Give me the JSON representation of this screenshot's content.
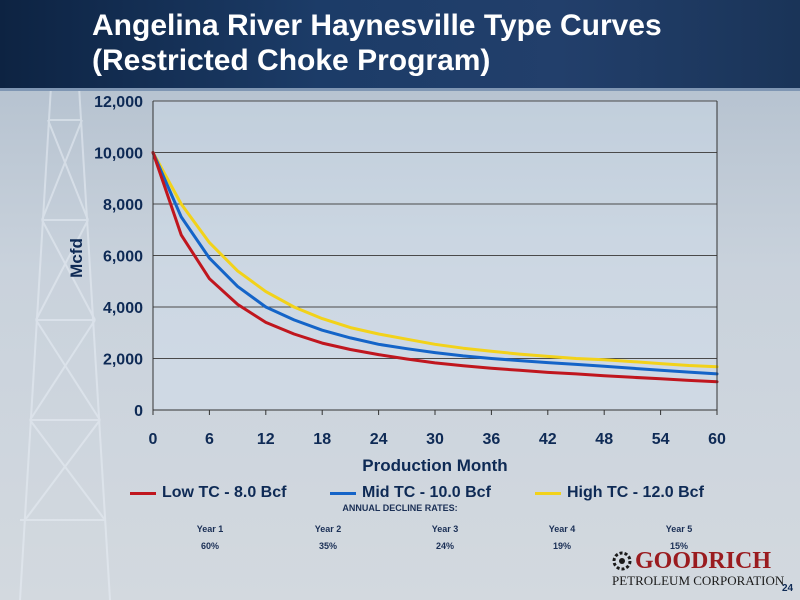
{
  "slide": {
    "title_line1": "Angelina River Haynesville Type Curves",
    "title_line2": "(Restricted Choke Program)",
    "page_number": "24"
  },
  "colors": {
    "low": "#c0161e",
    "mid": "#1464c8",
    "high": "#f2d21a",
    "axis_text": "#0e2a55"
  },
  "chart_data": {
    "type": "line",
    "xlabel": "Production Month",
    "ylabel": "Mcfd",
    "xlim": [
      0,
      60
    ],
    "ylim": [
      0,
      12000
    ],
    "xticks": [
      "0",
      "6",
      "12",
      "18",
      "24",
      "30",
      "36",
      "42",
      "48",
      "54",
      "60"
    ],
    "yticks": [
      "0",
      "2,000",
      "4,000",
      "6,000",
      "8,000",
      "10,000",
      "12,000"
    ],
    "grid": "horizontal",
    "legend_position": "bottom",
    "x": [
      0,
      3,
      6,
      9,
      12,
      15,
      18,
      21,
      24,
      27,
      30,
      33,
      36,
      39,
      42,
      45,
      48,
      51,
      54,
      57,
      60
    ],
    "series": [
      {
        "name": "Low TC - 8.0 Bcf",
        "color_key": "low",
        "values": [
          10000,
          6800,
          5100,
          4100,
          3400,
          2950,
          2600,
          2350,
          2150,
          1980,
          1830,
          1720,
          1620,
          1540,
          1460,
          1400,
          1330,
          1270,
          1210,
          1150,
          1100
        ]
      },
      {
        "name": "Mid TC - 10.0 Bcf",
        "color_key": "mid",
        "values": [
          10000,
          7500,
          5900,
          4800,
          4000,
          3500,
          3100,
          2800,
          2550,
          2380,
          2230,
          2100,
          2000,
          1920,
          1840,
          1770,
          1700,
          1620,
          1540,
          1470,
          1400
        ]
      },
      {
        "name": "High TC - 12.0 Bcf",
        "color_key": "high",
        "values": [
          10000,
          8000,
          6500,
          5400,
          4600,
          4000,
          3550,
          3200,
          2950,
          2750,
          2550,
          2400,
          2280,
          2170,
          2080,
          2000,
          1950,
          1880,
          1800,
          1730,
          1680
        ]
      }
    ]
  },
  "decline": {
    "title": "ANNUAL DECLINE RATES:",
    "years": [
      "Year 1",
      "Year 2",
      "Year 3",
      "Year 4",
      "Year 5"
    ],
    "rates": [
      "60%",
      "35%",
      "24%",
      "19%",
      "15%"
    ]
  },
  "logo": {
    "name": "GOODRICH",
    "subtitle": "PETROLEUM CORPORATION",
    "icon": "goodrich-gear-icon"
  }
}
